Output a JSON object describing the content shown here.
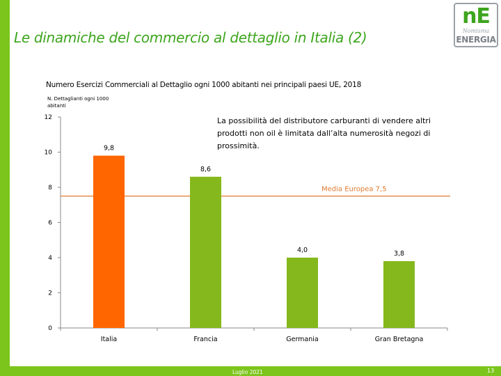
{
  "slide": {
    "title": "Le dinamiche del commercio al dettaglio in Italia (2)",
    "footer_date": "Luglio 2021",
    "page_number": "13"
  },
  "logo": {
    "mark": "nE",
    "script": "Nomisma",
    "word": "ENERGIA"
  },
  "annotation": "La possibilità del distributore carburanti di vendere altri prodotti non oil è limitata dall’alta numerosità negozi di prossimità.",
  "colors": {
    "brand_green": "#7cc51c",
    "title_green": "#3da51d",
    "highlight_bar": "#ff6600",
    "bar": "#85b81c",
    "reference_line": "#e07a2e"
  },
  "chart_data": {
    "type": "bar",
    "title": "Numero Esercizi Commerciali al Dettaglio ogni 1000 abitanti nei principali paesi UE, 2018",
    "ylabel": "N. Dettaglianti ogni 1000 abitanti",
    "xlabel": "",
    "categories": [
      "Italia",
      "Francia",
      "Germania",
      "Gran Bretagna"
    ],
    "values": [
      9.8,
      8.6,
      4.0,
      3.8
    ],
    "value_labels": [
      "9,8",
      "8,6",
      "4,0",
      "3,8"
    ],
    "highlight_index": 0,
    "ylim": [
      0,
      12
    ],
    "yticks": [
      0,
      2,
      4,
      6,
      8,
      10,
      12
    ],
    "grid": false,
    "reference_line": {
      "label": "Media Europea 7,5",
      "value": 7.5
    }
  }
}
